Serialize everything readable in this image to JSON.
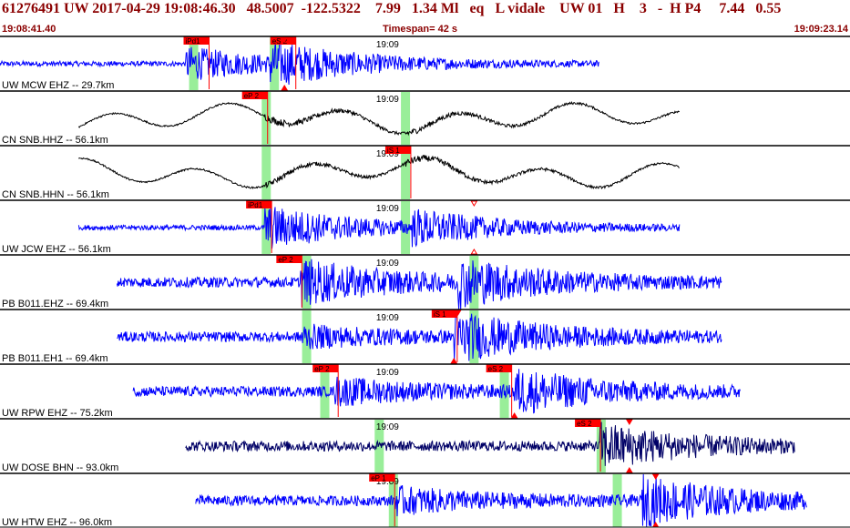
{
  "header": {
    "event_line": "61276491 UW 2017-04-29 19:08:46.30   48.5007  -122.5322    7.99   1.34 Ml   eq   L vidale    UW 01   H    3   -  H P4     7.44   0.55",
    "start_time": "19:08:41.40",
    "timespan": "Timespan=  42 s",
    "end_time": "19:09:23.14"
  },
  "colors": {
    "trace_blue": "#0000ff",
    "trace_black": "#000000",
    "trace_navy": "#000066",
    "pick_red": "#ff0000",
    "window_green": "#99ee99",
    "header_text": "#8b0000"
  },
  "chart_data": {
    "type": "seismogram",
    "time_axis": {
      "start": "19:08:41.40",
      "end": "19:09:23.14",
      "span_s": 42,
      "minute_mark": "19:09",
      "minute_mark_t": 18.6
    },
    "traces": [
      {
        "label": "UW MCW EHZ -- 29.7km",
        "color": "#0000ff",
        "data_start": 0.0,
        "data_end": 29.7,
        "style": "noise",
        "events": [
          {
            "t": 9.2,
            "amp": 0.7
          },
          {
            "t": 13.4,
            "amp": 1.0
          }
        ],
        "greens": [
          9.6,
          13.6
        ],
        "picks": [
          {
            "t": 9.1,
            "label": "iPd1"
          },
          {
            "t": 13.4,
            "label": "eS 2"
          }
        ],
        "markers": [
          {
            "t": 14.1,
            "dir": "down"
          },
          {
            "t": 14.1,
            "dir": "up"
          }
        ]
      },
      {
        "label": "CN SNB.HHZ -- 56.1km",
        "color": "#000000",
        "data_start": 3.9,
        "data_end": 33.7,
        "style": "wave",
        "events": [
          {
            "t": 13.1,
            "amp": 0.6
          },
          {
            "t": 20.0,
            "amp": 0.5
          }
        ],
        "greens": [
          13.2,
          20.1
        ],
        "picks": [
          {
            "t": 12.0,
            "label": "eP 2"
          }
        ],
        "markers": []
      },
      {
        "label": "CN SNB.HHN -- 56.1km",
        "color": "#000000",
        "data_start": 3.9,
        "data_end": 33.7,
        "style": "wave",
        "events": [
          {
            "t": 13.1,
            "amp": 0.4
          },
          {
            "t": 20.0,
            "amp": 0.6
          }
        ],
        "greens": [
          13.2,
          20.1
        ],
        "picks": [
          {
            "t": 19.1,
            "label": "iS 1"
          }
        ],
        "markers": []
      },
      {
        "label": "UW JCW EHZ -- 56.1km",
        "color": "#0000ff",
        "data_start": 3.9,
        "data_end": 33.7,
        "style": "noise",
        "events": [
          {
            "t": 13.1,
            "amp": 0.95
          },
          {
            "t": 20.4,
            "amp": 0.8
          }
        ],
        "greens": [
          13.2,
          20.1
        ],
        "picks": [
          {
            "t": 12.2,
            "label": "iPd1"
          }
        ],
        "markers": [
          {
            "t": 23.5,
            "dir": "down-hollow"
          },
          {
            "t": 23.5,
            "dir": "up-hollow"
          }
        ]
      },
      {
        "label": "PB B011.EHZ -- 69.4km",
        "color": "#0000ff",
        "data_start": 5.8,
        "data_end": 35.8,
        "style": "noise",
        "events": [
          {
            "t": 14.9,
            "amp": 0.9
          },
          {
            "t": 22.7,
            "amp": 1.0
          }
        ],
        "greens": [
          15.2,
          23.5
        ],
        "picks": [
          {
            "t": 13.7,
            "label": "eP 2"
          }
        ],
        "markers": []
      },
      {
        "label": "PB B011.EH1 -- 69.4km",
        "color": "#0000ff",
        "data_start": 5.8,
        "data_end": 35.8,
        "style": "noise",
        "events": [
          {
            "t": 14.9,
            "amp": 0.4
          },
          {
            "t": 22.5,
            "amp": 1.0
          }
        ],
        "greens": [
          15.2,
          23.5
        ],
        "picks": [
          {
            "t": 21.4,
            "label": "iS 1"
          }
        ],
        "markers": [
          {
            "t": 22.5,
            "dir": "up"
          },
          {
            "t": 22.7,
            "dir": "down"
          }
        ]
      },
      {
        "label": "UW RPW EHZ -- 75.2km",
        "color": "#0000ff",
        "data_start": 6.6,
        "data_end": 36.7,
        "style": "noise",
        "events": [
          {
            "t": 16.6,
            "amp": 0.5
          },
          {
            "t": 25.5,
            "amp": 0.9
          }
        ],
        "greens": [
          16.1,
          25.0
        ],
        "picks": [
          {
            "t": 15.5,
            "label": "eP 2"
          },
          {
            "t": 24.1,
            "label": "eS 2"
          }
        ],
        "markers": [
          {
            "t": 25.5,
            "dir": "up"
          }
        ]
      },
      {
        "label": "UW DOSE BHN -- 93.0km",
        "color": "#000066",
        "data_start": 9.2,
        "data_end": 39.4,
        "style": "noise",
        "events": [
          {
            "t": 29.7,
            "amp": 0.9
          }
        ],
        "greens": [
          18.8,
          29.8
        ],
        "picks": [
          {
            "t": 28.5,
            "label": "eS 2"
          }
        ],
        "markers": [
          {
            "t": 31.2,
            "dir": "down"
          },
          {
            "t": 31.2,
            "dir": "up"
          }
        ]
      },
      {
        "label": "UW HTW EHZ -- 96.0km",
        "color": "#0000ff",
        "data_start": 9.7,
        "data_end": 40.0,
        "style": "noise",
        "events": [
          {
            "t": 19.5,
            "amp": 0.5
          },
          {
            "t": 31.8,
            "amp": 1.0
          }
        ],
        "greens": [
          19.5,
          30.6
        ],
        "picks": [
          {
            "t": 18.3,
            "label": "eP 1"
          }
        ],
        "markers": [
          {
            "t": 32.5,
            "dir": "down"
          },
          {
            "t": 32.5,
            "dir": "up"
          }
        ]
      }
    ]
  }
}
